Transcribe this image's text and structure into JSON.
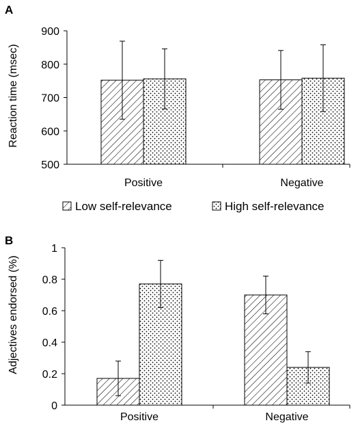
{
  "legend": {
    "entries": [
      "Low self-relevance",
      "High self-relevance"
    ]
  },
  "chart_data": [
    {
      "panel": "A",
      "type": "bar",
      "categories": [
        "Positive",
        "Negative"
      ],
      "series": [
        {
          "name": "Low self-relevance",
          "values": [
            752,
            753
          ],
          "error": [
            117,
            88
          ]
        },
        {
          "name": "High self-relevance",
          "values": [
            756,
            758
          ],
          "error": [
            90,
            100
          ]
        }
      ],
      "ylabel": "Reaction time (msec)",
      "ylim": [
        500,
        900
      ],
      "yticks": [
        "500",
        "600",
        "700",
        "800",
        "900"
      ],
      "legend_position": "below"
    },
    {
      "panel": "B",
      "type": "bar",
      "categories": [
        "Positive",
        "Negative"
      ],
      "series": [
        {
          "name": "Low self-relevance",
          "values": [
            0.17,
            0.7
          ],
          "error": [
            0.11,
            0.12
          ]
        },
        {
          "name": "High self-relevance",
          "values": [
            0.77,
            0.24
          ],
          "error": [
            0.15,
            0.1
          ]
        }
      ],
      "ylabel": "Adjectives endorsed (%)",
      "ylim": [
        0,
        1
      ],
      "yticks": [
        "0",
        "0.2",
        "0.4",
        "0.6",
        "0.8",
        "1"
      ],
      "legend_position": "above"
    }
  ]
}
